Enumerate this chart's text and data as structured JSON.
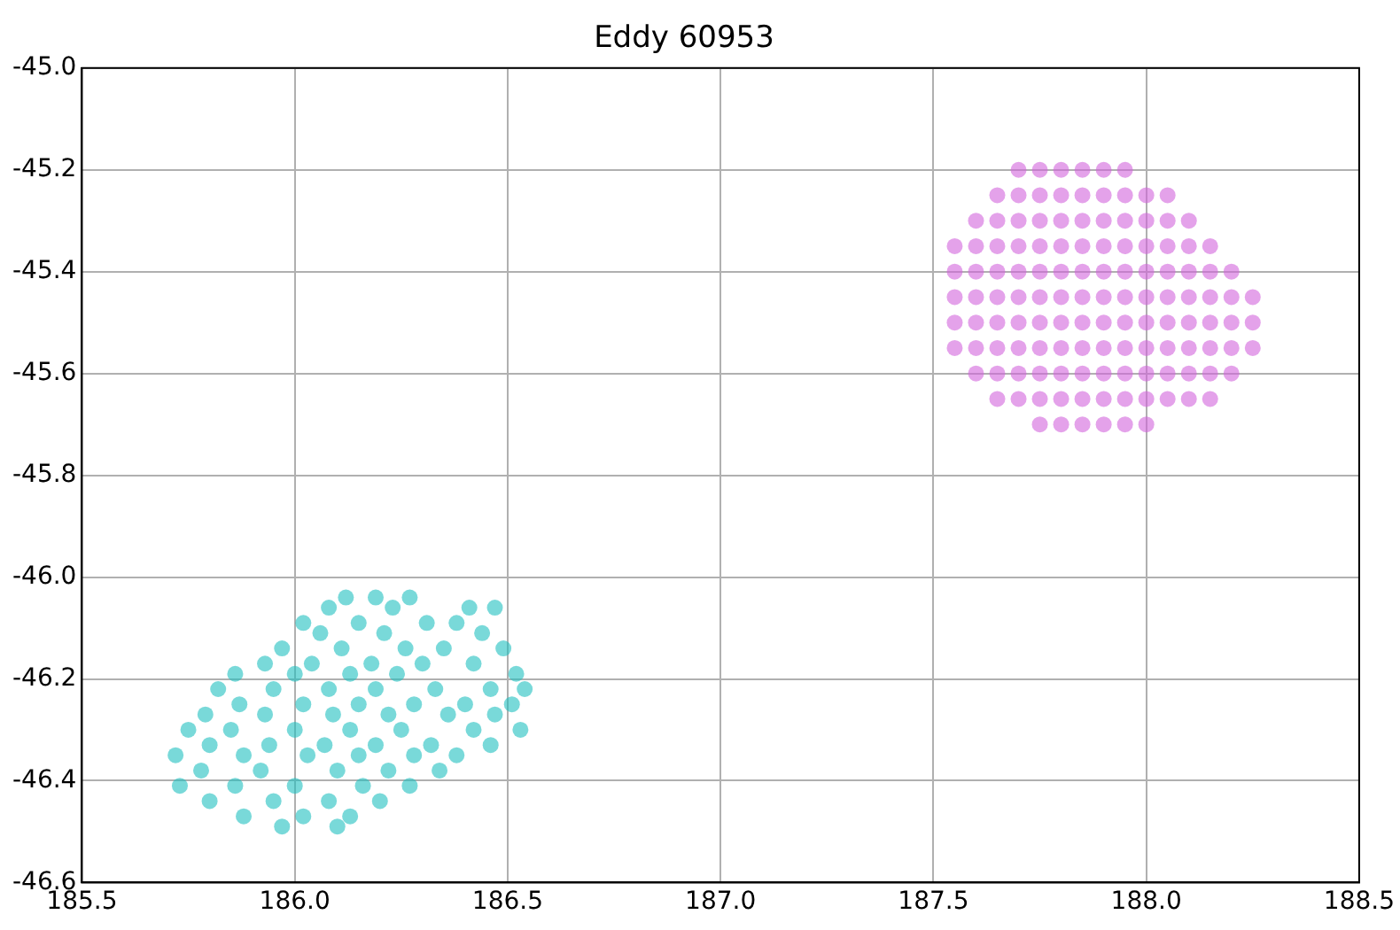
{
  "chart_data": {
    "type": "scatter",
    "title": "Eddy 60953",
    "marker": "circle",
    "grid": true,
    "legend": false,
    "xlim": [
      185.5,
      188.5
    ],
    "xticks": [
      185.5,
      {
        "value": 186,
        "label": "186.0"
      },
      186.5,
      {
        "value": 187,
        "label": "187.0"
      },
      187.5,
      {
        "value": 188,
        "label": "188.0"
      },
      188.5
    ],
    "ylim": [
      -46.6,
      -45
    ],
    "yticks": [
      -46.6,
      -46.4,
      -46.2,
      {
        "value": -46,
        "label": "-46.0"
      },
      -45.8,
      -45.6,
      -45.4,
      -45.2,
      {
        "value": -45,
        "label": "-45.0"
      }
    ],
    "series": [
      {
        "color": "#20c0c0",
        "x": [
          186.12,
          186.19,
          186.27,
          186.08,
          186.23,
          186.41,
          186.47,
          186.02,
          186.15,
          186.31,
          186.38,
          186.06,
          186.21,
          186.44,
          185.97,
          186.11,
          186.26,
          186.35,
          186.49,
          185.93,
          186.04,
          186.18,
          186.3,
          186.42,
          185.86,
          186.0,
          186.13,
          186.24,
          186.52,
          185.82,
          185.95,
          186.08,
          186.19,
          186.33,
          186.46,
          186.54,
          185.87,
          186.02,
          186.15,
          186.28,
          186.4,
          186.51,
          185.79,
          185.93,
          186.09,
          186.22,
          186.36,
          186.47,
          185.75,
          185.85,
          186.0,
          186.13,
          186.25,
          186.42,
          186.53,
          185.8,
          185.94,
          186.07,
          186.19,
          186.32,
          186.46,
          185.72,
          185.88,
          186.03,
          186.15,
          186.28,
          186.38,
          185.78,
          185.92,
          186.1,
          186.22,
          186.34,
          185.73,
          185.86,
          186.0,
          186.16,
          186.27,
          185.8,
          185.95,
          186.08,
          186.2,
          185.88,
          186.02,
          186.13,
          185.97,
          186.1
        ],
        "values": [
          -46.04,
          -46.04,
          -46.04,
          -46.06,
          -46.06,
          -46.06,
          -46.06,
          -46.09,
          -46.09,
          -46.09,
          -46.09,
          -46.11,
          -46.11,
          -46.11,
          -46.14,
          -46.14,
          -46.14,
          -46.14,
          -46.14,
          -46.17,
          -46.17,
          -46.17,
          -46.17,
          -46.17,
          -46.19,
          -46.19,
          -46.19,
          -46.19,
          -46.19,
          -46.22,
          -46.22,
          -46.22,
          -46.22,
          -46.22,
          -46.22,
          -46.22,
          -46.25,
          -46.25,
          -46.25,
          -46.25,
          -46.25,
          -46.25,
          -46.27,
          -46.27,
          -46.27,
          -46.27,
          -46.27,
          -46.27,
          -46.3,
          -46.3,
          -46.3,
          -46.3,
          -46.3,
          -46.3,
          -46.3,
          -46.33,
          -46.33,
          -46.33,
          -46.33,
          -46.33,
          -46.33,
          -46.35,
          -46.35,
          -46.35,
          -46.35,
          -46.35,
          -46.35,
          -46.38,
          -46.38,
          -46.38,
          -46.38,
          -46.38,
          -46.41,
          -46.41,
          -46.41,
          -46.41,
          -46.41,
          -46.44,
          -46.44,
          -46.44,
          -46.44,
          -46.47,
          -46.47,
          -46.47,
          -46.49,
          -46.49
        ]
      },
      {
        "color": "#d264dc",
        "x": [
          187.7,
          187.75,
          187.8,
          187.85,
          187.9,
          187.95,
          187.65,
          187.7,
          187.75,
          187.8,
          187.85,
          187.9,
          187.95,
          188.0,
          188.05,
          187.6,
          187.65,
          187.7,
          187.75,
          187.8,
          187.85,
          187.9,
          187.95,
          188.0,
          188.05,
          188.1,
          187.55,
          187.6,
          187.65,
          187.7,
          187.75,
          187.8,
          187.85,
          187.9,
          187.95,
          188.0,
          188.05,
          188.1,
          188.15,
          187.55,
          187.6,
          187.65,
          187.7,
          187.75,
          187.8,
          187.85,
          187.9,
          187.95,
          188.0,
          188.05,
          188.1,
          188.15,
          188.2,
          187.55,
          187.6,
          187.65,
          187.7,
          187.75,
          187.8,
          187.85,
          187.9,
          187.95,
          188.0,
          188.05,
          188.1,
          188.15,
          188.2,
          188.25,
          187.55,
          187.6,
          187.65,
          187.7,
          187.75,
          187.8,
          187.85,
          187.9,
          187.95,
          188.0,
          188.05,
          188.1,
          188.15,
          188.2,
          188.25,
          187.55,
          187.6,
          187.65,
          187.7,
          187.75,
          187.8,
          187.85,
          187.9,
          187.95,
          188.0,
          188.05,
          188.1,
          188.15,
          188.2,
          188.25,
          187.6,
          187.65,
          187.7,
          187.75,
          187.8,
          187.85,
          187.9,
          187.95,
          188.0,
          188.05,
          188.1,
          188.15,
          188.2,
          187.65,
          187.7,
          187.75,
          187.8,
          187.85,
          187.9,
          187.95,
          188.0,
          188.05,
          188.1,
          188.15,
          187.75,
          187.8,
          187.85,
          187.9,
          187.95,
          188.0
        ],
        "values": [
          -45.2,
          -45.2,
          -45.2,
          -45.2,
          -45.2,
          -45.2,
          -45.25,
          -45.25,
          -45.25,
          -45.25,
          -45.25,
          -45.25,
          -45.25,
          -45.25,
          -45.25,
          -45.3,
          -45.3,
          -45.3,
          -45.3,
          -45.3,
          -45.3,
          -45.3,
          -45.3,
          -45.3,
          -45.3,
          -45.3,
          -45.35,
          -45.35,
          -45.35,
          -45.35,
          -45.35,
          -45.35,
          -45.35,
          -45.35,
          -45.35,
          -45.35,
          -45.35,
          -45.35,
          -45.35,
          -45.4,
          -45.4,
          -45.4,
          -45.4,
          -45.4,
          -45.4,
          -45.4,
          -45.4,
          -45.4,
          -45.4,
          -45.4,
          -45.4,
          -45.4,
          -45.4,
          -45.45,
          -45.45,
          -45.45,
          -45.45,
          -45.45,
          -45.45,
          -45.45,
          -45.45,
          -45.45,
          -45.45,
          -45.45,
          -45.45,
          -45.45,
          -45.45,
          -45.45,
          -45.5,
          -45.5,
          -45.5,
          -45.5,
          -45.5,
          -45.5,
          -45.5,
          -45.5,
          -45.5,
          -45.5,
          -45.5,
          -45.5,
          -45.5,
          -45.5,
          -45.5,
          -45.55,
          -45.55,
          -45.55,
          -45.55,
          -45.55,
          -45.55,
          -45.55,
          -45.55,
          -45.55,
          -45.55,
          -45.55,
          -45.55,
          -45.55,
          -45.55,
          -45.55,
          -45.6,
          -45.6,
          -45.6,
          -45.6,
          -45.6,
          -45.6,
          -45.6,
          -45.6,
          -45.6,
          -45.6,
          -45.6,
          -45.6,
          -45.6,
          -45.65,
          -45.65,
          -45.65,
          -45.65,
          -45.65,
          -45.65,
          -45.65,
          -45.65,
          -45.65,
          -45.65,
          -45.65,
          -45.7,
          -45.7,
          -45.7,
          -45.7,
          -45.7,
          -45.7
        ]
      }
    ]
  }
}
